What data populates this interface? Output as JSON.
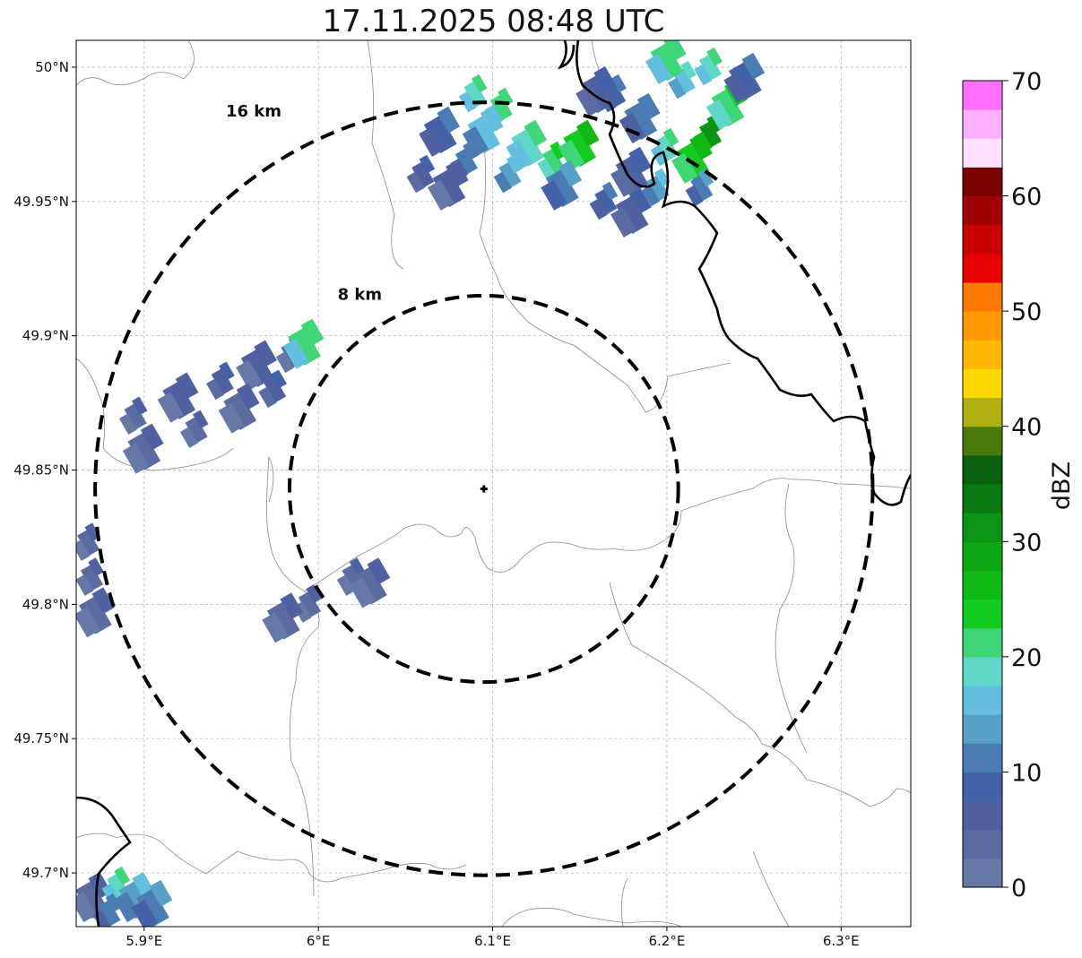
{
  "title": "17.11.2025 08:48 UTC",
  "map": {
    "lon_range": [
      5.861,
      6.34
    ],
    "lat_range": [
      49.68,
      50.01
    ],
    "lon_ticks": [
      {
        "value": 5.9,
        "label": "5.9°E"
      },
      {
        "value": 6.0,
        "label": "6°E"
      },
      {
        "value": 6.1,
        "label": "6.1°E"
      },
      {
        "value": 6.2,
        "label": "6.2°E"
      },
      {
        "value": 6.3,
        "label": "6.3°E"
      }
    ],
    "lat_ticks": [
      {
        "value": 50.0,
        "label": "50°N"
      },
      {
        "value": 49.95,
        "label": "49.95°N"
      },
      {
        "value": 49.9,
        "label": "49.9°N"
      },
      {
        "value": 49.85,
        "label": "49.85°N"
      },
      {
        "value": 49.8,
        "label": "49.8°N"
      },
      {
        "value": 49.75,
        "label": "49.75°N"
      },
      {
        "value": 49.7,
        "label": "49.7°N"
      }
    ],
    "radar_site": {
      "lon": 6.095,
      "lat": 49.843
    },
    "rings": [
      {
        "radius_km": 16,
        "label": "16 km"
      },
      {
        "radius_km": 8,
        "label": "8 km"
      }
    ]
  },
  "colorbar": {
    "label": "dBZ",
    "ticks": [
      "0",
      "10",
      "20",
      "30",
      "40",
      "50",
      "60",
      "70"
    ],
    "min": 0,
    "max": 70,
    "step": 2.5,
    "colors": [
      "#6678a6",
      "#5a6ba1",
      "#4f61a1",
      "#4561a8",
      "#4a7bb2",
      "#57a0c6",
      "#64bede",
      "#60d6c6",
      "#3fd678",
      "#14cc20",
      "#10b814",
      "#0ca816",
      "#0c9416",
      "#0a7b12",
      "#0a6210",
      "#4a7a0c",
      "#b0b010",
      "#ffd800",
      "#ffb800",
      "#ff9a00",
      "#ff7a00",
      "#e80000",
      "#c80000",
      "#a00000",
      "#780000",
      "#ffe0ff",
      "#ffb0ff",
      "#ff70ff",
      "#f030f0"
    ]
  },
  "echo_cells": [
    {
      "lon": 5.895,
      "lat": 49.87,
      "dbz": 4
    },
    {
      "lon": 5.92,
      "lat": 49.876,
      "dbz": 5
    },
    {
      "lon": 5.945,
      "lat": 49.883,
      "dbz": 6
    },
    {
      "lon": 5.965,
      "lat": 49.888,
      "dbz": 5
    },
    {
      "lon": 5.93,
      "lat": 49.865,
      "dbz": 3
    },
    {
      "lon": 5.955,
      "lat": 49.872,
      "dbz": 4
    },
    {
      "lon": 5.975,
      "lat": 49.88,
      "dbz": 6
    },
    {
      "lon": 5.9,
      "lat": 49.857,
      "dbz": 4
    },
    {
      "lon": 5.985,
      "lat": 49.893,
      "dbz": 4
    },
    {
      "lon": 5.992,
      "lat": 49.896,
      "dbz": 20
    },
    {
      "lon": 6.06,
      "lat": 49.96,
      "dbz": 6
    },
    {
      "lon": 6.075,
      "lat": 49.955,
      "dbz": 5
    },
    {
      "lon": 6.085,
      "lat": 49.965,
      "dbz": 10
    },
    {
      "lon": 6.095,
      "lat": 49.975,
      "dbz": 15
    },
    {
      "lon": 6.105,
      "lat": 49.985,
      "dbz": 20
    },
    {
      "lon": 6.12,
      "lat": 49.97,
      "dbz": 18
    },
    {
      "lon": 6.135,
      "lat": 49.965,
      "dbz": 22
    },
    {
      "lon": 6.15,
      "lat": 49.97,
      "dbz": 24
    },
    {
      "lon": 6.11,
      "lat": 49.96,
      "dbz": 14
    },
    {
      "lon": 6.14,
      "lat": 49.955,
      "dbz": 12
    },
    {
      "lon": 6.165,
      "lat": 49.95,
      "dbz": 8
    },
    {
      "lon": 6.18,
      "lat": 49.945,
      "dbz": 6
    },
    {
      "lon": 6.17,
      "lat": 49.99,
      "dbz": 8
    },
    {
      "lon": 6.185,
      "lat": 49.98,
      "dbz": 10
    },
    {
      "lon": 6.2,
      "lat": 49.97,
      "dbz": 18
    },
    {
      "lon": 6.215,
      "lat": 49.965,
      "dbz": 24
    },
    {
      "lon": 6.225,
      "lat": 49.975,
      "dbz": 30
    },
    {
      "lon": 6.235,
      "lat": 49.985,
      "dbz": 22
    },
    {
      "lon": 6.21,
      "lat": 49.995,
      "dbz": 16
    },
    {
      "lon": 6.2,
      "lat": 50.002,
      "dbz": 20
    },
    {
      "lon": 6.225,
      "lat": 50.0,
      "dbz": 18
    },
    {
      "lon": 6.245,
      "lat": 49.995,
      "dbz": 8
    },
    {
      "lon": 6.195,
      "lat": 49.955,
      "dbz": 14
    },
    {
      "lon": 6.18,
      "lat": 49.96,
      "dbz": 6
    },
    {
      "lon": 6.22,
      "lat": 49.955,
      "dbz": 12
    },
    {
      "lon": 6.16,
      "lat": 49.99,
      "dbz": 6
    },
    {
      "lon": 6.09,
      "lat": 49.99,
      "dbz": 18
    },
    {
      "lon": 6.07,
      "lat": 49.975,
      "dbz": 8
    },
    {
      "lon": 6.02,
      "lat": 49.81,
      "dbz": 4
    },
    {
      "lon": 6.03,
      "lat": 49.807,
      "dbz": 4
    },
    {
      "lon": 5.995,
      "lat": 49.8,
      "dbz": 3
    },
    {
      "lon": 5.98,
      "lat": 49.794,
      "dbz": 3
    },
    {
      "lon": 5.87,
      "lat": 49.81,
      "dbz": 3
    },
    {
      "lon": 5.872,
      "lat": 49.796,
      "dbz": 3
    },
    {
      "lon": 5.868,
      "lat": 49.823,
      "dbz": 3
    },
    {
      "lon": 5.87,
      "lat": 49.69,
      "dbz": 4
    },
    {
      "lon": 5.885,
      "lat": 49.695,
      "dbz": 18
    },
    {
      "lon": 5.895,
      "lat": 49.69,
      "dbz": 14
    },
    {
      "lon": 5.88,
      "lat": 49.685,
      "dbz": 10
    },
    {
      "lon": 5.905,
      "lat": 49.687,
      "dbz": 12
    }
  ],
  "coastline_note": ""
}
